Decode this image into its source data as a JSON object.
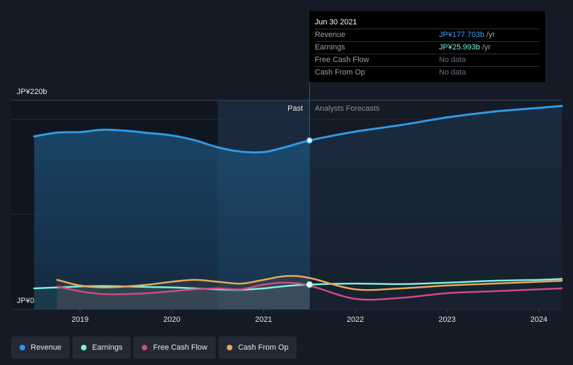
{
  "tooltip": {
    "date": "Jun 30 2021",
    "rows": [
      {
        "label": "Revenue",
        "value": "JP¥177.703b",
        "unit": " /yr"
      },
      {
        "label": "Earnings",
        "value": "JP¥25.993b",
        "unit": " /yr"
      },
      {
        "label": "Free Cash Flow",
        "value": "No data",
        "unit": ""
      },
      {
        "label": "Cash From Op",
        "value": "No data",
        "unit": ""
      }
    ]
  },
  "y_axis": {
    "top_label": "JP¥220b",
    "bottom_label": "JP¥0"
  },
  "regions": {
    "past_label": "Past",
    "forecast_label": "Analysts Forecasts"
  },
  "legend": [
    {
      "label": "Revenue",
      "color": "#2f9ae8"
    },
    {
      "label": "Earnings",
      "color": "#7ef0e0"
    },
    {
      "label": "Free Cash Flow",
      "color": "#d04a86"
    },
    {
      "label": "Cash From Op",
      "color": "#e8a85a"
    }
  ],
  "chart_data": {
    "type": "line",
    "ylim": [
      0,
      220
    ],
    "y_unit": "JP¥ billions",
    "x_ticks": [
      "2019",
      "2020",
      "2021",
      "2022",
      "2023",
      "2024"
    ],
    "xlim": [
      2018.5,
      2024.25
    ],
    "past_end": 2021.5,
    "highlight_start": 2020.5,
    "marker_x": 2021.5,
    "series": [
      {
        "name": "Revenue",
        "color": "#2f9ae8",
        "x": [
          2018.5,
          2018.75,
          2019.0,
          2019.25,
          2019.5,
          2019.75,
          2020.0,
          2020.25,
          2020.5,
          2020.75,
          2021.0,
          2021.25,
          2021.5,
          2022.0,
          2022.5,
          2023.0,
          2023.5,
          2024.0,
          2024.25
        ],
        "y": [
          182,
          186,
          186.5,
          189,
          188,
          185.5,
          183,
          178,
          170.5,
          166,
          165.5,
          171,
          177.7,
          187,
          194,
          202,
          208,
          212,
          214
        ]
      },
      {
        "name": "Earnings",
        "color": "#7ef0e0",
        "x": [
          2018.5,
          2018.75,
          2019.0,
          2019.25,
          2019.5,
          2019.75,
          2020.0,
          2020.25,
          2020.5,
          2020.75,
          2021.0,
          2021.25,
          2021.5,
          2022.0,
          2022.5,
          2023.0,
          2023.5,
          2024.0,
          2024.25
        ],
        "y": [
          22,
          23,
          24,
          24.5,
          24,
          23.5,
          23,
          22,
          21,
          20.5,
          22,
          24.5,
          26,
          27,
          26.5,
          28,
          30,
          31,
          32
        ]
      },
      {
        "name": "Free Cash Flow",
        "color": "#d04a86",
        "x": [
          2018.75,
          2019.0,
          2019.25,
          2019.5,
          2019.75,
          2020.0,
          2020.25,
          2020.5,
          2020.75,
          2021.0,
          2021.25,
          2021.5,
          2022.0,
          2022.5,
          2023.0,
          2023.5,
          2024.0,
          2024.25
        ],
        "y": [
          24,
          19,
          16,
          16,
          17,
          19,
          21,
          22,
          21,
          26,
          28,
          25,
          11,
          12,
          17,
          19,
          21,
          22
        ]
      },
      {
        "name": "Cash From Op",
        "color": "#e8a85a",
        "x": [
          2018.75,
          2019.0,
          2019.25,
          2019.5,
          2019.75,
          2020.0,
          2020.25,
          2020.5,
          2020.75,
          2021.0,
          2021.25,
          2021.5,
          2022.0,
          2022.5,
          2023.0,
          2023.5,
          2024.0,
          2024.25
        ],
        "y": [
          31,
          25,
          23,
          24,
          26,
          29,
          31,
          29,
          27,
          31,
          35,
          33,
          21,
          22,
          25,
          27,
          29,
          30
        ]
      }
    ]
  }
}
